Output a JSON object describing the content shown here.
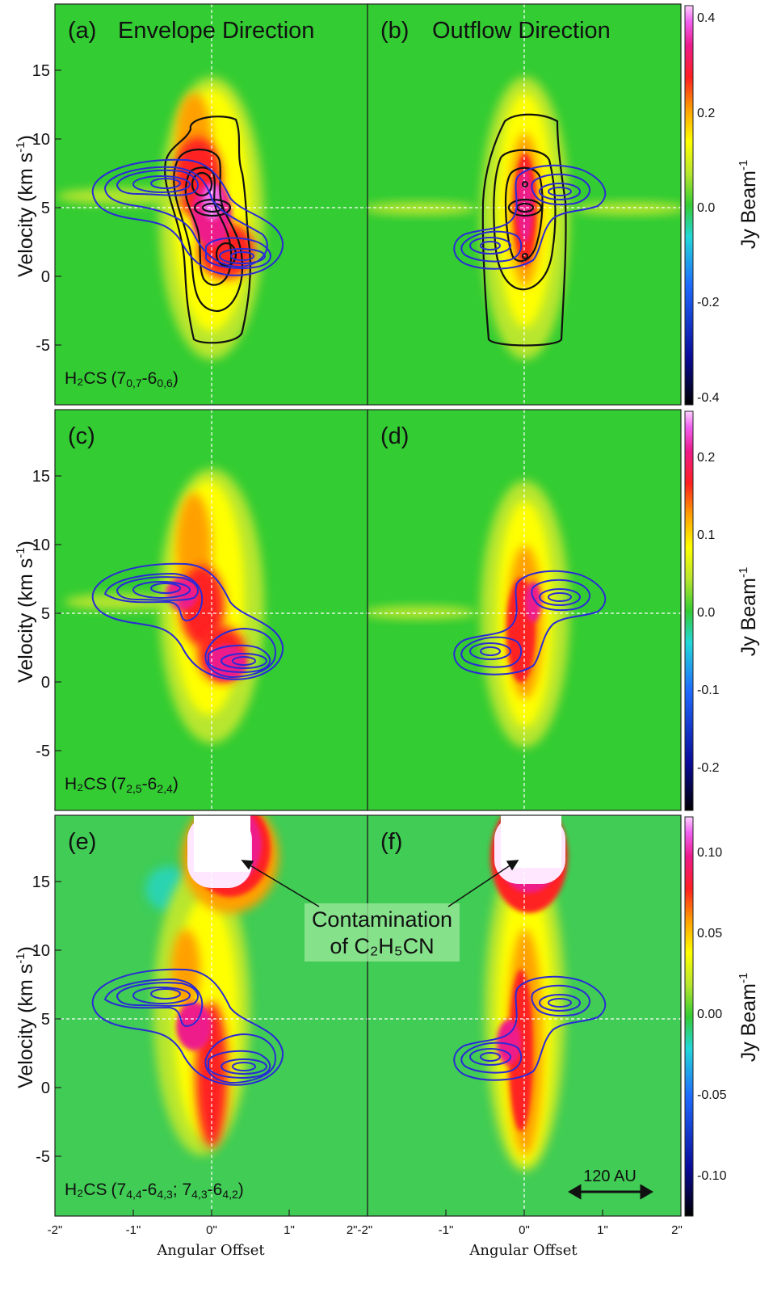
{
  "figure": {
    "x_axis_label": "Angular Offset",
    "y_axis_label_main": "Velocity (km s",
    "y_axis_label_sup": "-1",
    "y_axis_label_close": ")",
    "colorbar_label_main": "Jy Beam",
    "colorbar_label_sup": "-1",
    "annotation_line1": "Contamination",
    "annotation_line2": "of C₂H₅CN",
    "scalebar_label": "120 AU"
  },
  "chart_data": [
    {
      "type": "heatmap",
      "panel": "(a)",
      "direction": "Envelope Direction",
      "molecule_label": "H2CS (70,7-60,6)",
      "xlabel": "Angular Offset",
      "ylabel": "Velocity (km s-1)",
      "xlim": [
        -2,
        2
      ],
      "ylim": [
        -8.5,
        19
      ],
      "x_ticks": [
        "-2\"",
        "-1\"",
        "0\"",
        "1\"",
        "2\""
      ],
      "y_ticks": [
        -5,
        0,
        5,
        10,
        15
      ],
      "crosshair": {
        "x": 0,
        "y": 3.9
      },
      "colorbar": {
        "label": "Jy Beam-1",
        "range": [
          -0.42,
          0.42
        ],
        "ticks": [
          0.4,
          0.2,
          0.0,
          -0.2,
          -0.4
        ]
      },
      "contours": [
        "black (observed)",
        "blue (model)"
      ]
    },
    {
      "type": "heatmap",
      "panel": "(b)",
      "direction": "Outflow Direction",
      "xlim": [
        -2,
        2
      ],
      "ylim": [
        -8.5,
        19
      ],
      "x_ticks": [
        "-2\"",
        "-1\"",
        "0\"",
        "1\"",
        "2\""
      ],
      "crosshair": {
        "x": 0,
        "y": 3.9
      },
      "colorbar": {
        "label": "Jy Beam-1",
        "range": [
          -0.42,
          0.42
        ],
        "ticks": [
          0.4,
          0.2,
          0.0,
          -0.2,
          -0.4
        ]
      }
    },
    {
      "type": "heatmap",
      "panel": "(c)",
      "direction": "Envelope Direction",
      "molecule_label": "H2CS (72,5-62,4)",
      "xlim": [
        -2,
        2
      ],
      "ylim": [
        -8.5,
        19
      ],
      "y_ticks": [
        -5,
        0,
        5,
        10,
        15
      ],
      "crosshair": {
        "x": 0,
        "y": 3.9
      },
      "colorbar": {
        "label": "Jy Beam-1",
        "range": [
          -0.25,
          0.25
        ],
        "ticks": [
          0.2,
          0.1,
          0.0,
          -0.1,
          -0.2
        ]
      }
    },
    {
      "type": "heatmap",
      "panel": "(d)",
      "direction": "Outflow Direction",
      "xlim": [
        -2,
        2
      ],
      "ylim": [
        -8.5,
        19
      ],
      "crosshair": {
        "x": 0,
        "y": 3.9
      },
      "colorbar": {
        "label": "Jy Beam-1",
        "range": [
          -0.25,
          0.25
        ],
        "ticks": [
          0.2,
          0.1,
          0.0,
          -0.1,
          -0.2
        ]
      }
    },
    {
      "type": "heatmap",
      "panel": "(e)",
      "direction": "Envelope Direction",
      "molecule_label": "H2CS (74,4-64,3; 74,3-64,2)",
      "xlim": [
        -2,
        2
      ],
      "ylim": [
        -8.5,
        19
      ],
      "y_ticks": [
        -5,
        0,
        5,
        10,
        15
      ],
      "crosshair": {
        "x": 0,
        "y": 3.9
      },
      "annotation": "Contamination of C2H5CN",
      "colorbar": {
        "label": "Jy Beam-1",
        "range": [
          -0.12,
          0.12
        ],
        "ticks": [
          0.1,
          0.05,
          0.0,
          -0.05,
          -0.1
        ]
      }
    },
    {
      "type": "heatmap",
      "panel": "(f)",
      "direction": "Outflow Direction",
      "xlim": [
        -2,
        2
      ],
      "ylim": [
        -8.5,
        19
      ],
      "crosshair": {
        "x": 0,
        "y": 3.9
      },
      "scalebar": "120 AU",
      "colorbar": {
        "label": "Jy Beam-1",
        "range": [
          -0.12,
          0.12
        ],
        "ticks": [
          0.1,
          0.05,
          0.0,
          -0.05,
          -0.1
        ]
      }
    }
  ],
  "panels": [
    {
      "id": "a",
      "tag": "(a)",
      "title": "Envelope Direction",
      "mol": "H₂CS",
      "trans": "(7",
      "trans_sub": "0,7",
      "trans_mid": "-6",
      "trans_sub2": "0,6",
      "trans_end": ")"
    },
    {
      "id": "b",
      "tag": "(b)",
      "title": "Outflow Direction"
    },
    {
      "id": "c",
      "tag": "(c)",
      "mol": "H₂CS",
      "trans": "(7",
      "trans_sub": "2,5",
      "trans_mid": "-6",
      "trans_sub2": "2,4",
      "trans_end": ")"
    },
    {
      "id": "d",
      "tag": "(d)"
    },
    {
      "id": "e",
      "tag": "(e)",
      "mol": "H₂CS",
      "trans": "(7",
      "trans_sub": "4,4",
      "trans_mid": "-6",
      "trans_sub2": "4,3",
      "trans_end": "; 7",
      "trans_sub3": "4,3",
      "trans_mid2": "-6",
      "trans_sub4": "4,2",
      "trans_end2": ")"
    },
    {
      "id": "f",
      "tag": "(f)"
    }
  ],
  "colors": {
    "background_green": "#33cc33",
    "black_contour": "#111111",
    "blue_contour": "#2a2ad6",
    "crosshair": "#ffffff"
  }
}
